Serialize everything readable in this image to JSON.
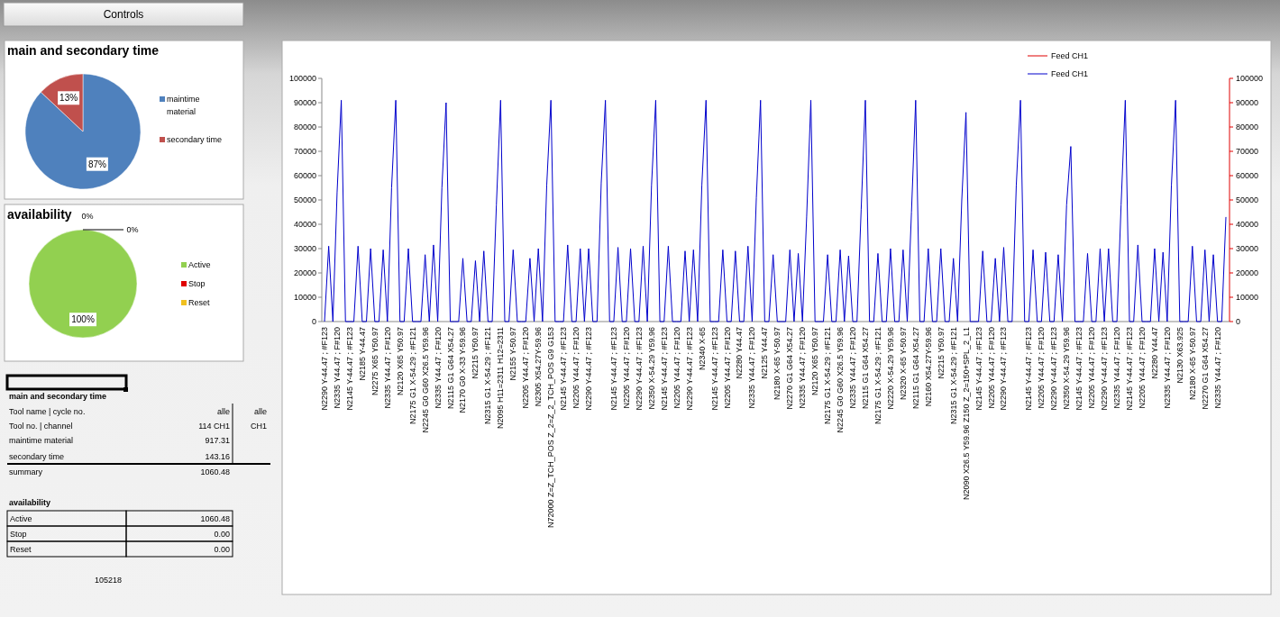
{
  "chart_data": [
    {
      "type": "other",
      "title": "Controls"
    },
    {
      "type": "pie",
      "title": "main and secondary time",
      "categories": [
        "maintime material",
        "secondary time"
      ],
      "values": [
        87,
        13
      ],
      "colors": [
        "#4f81bd",
        "#c0504d"
      ],
      "value_labels": [
        "87%",
        "13%"
      ],
      "legend": "right"
    },
    {
      "type": "pie",
      "title": "availability",
      "categories": [
        "Active",
        "Stop",
        "Reset"
      ],
      "values": [
        100,
        0,
        0
      ],
      "colors": [
        "#92d050",
        "#e00000",
        "#f0c020"
      ],
      "value_labels": [
        "100%",
        "0%",
        "0%"
      ],
      "legend": "right"
    },
    {
      "type": "other",
      "title": "main and secondary time",
      "categories": [
        "Tool name | cycle no.",
        "Tool no.  | channel",
        "maintime material",
        "secondary time",
        "summary"
      ],
      "value_labels": [
        "alle",
        "114 CH1",
        "917.31",
        "143.16",
        "1060.48"
      ],
      "annotations": [
        "alle",
        "CH1"
      ]
    },
    {
      "type": "other",
      "title": "availability",
      "categories": [
        "Active",
        "Stop",
        "Reset"
      ],
      "value_labels": [
        "1060.48",
        "0.00",
        "0.00"
      ],
      "annotations": [
        "105218"
      ]
    },
    {
      "type": "line",
      "legend": "top right",
      "categories": [
        "N2290 Y-44.47 ; #F123",
        null,
        null,
        "N2335 Y44.47 ; F#120",
        null,
        null,
        "N2145 Y-44.47 ; #F123",
        null,
        null,
        "N2185 Y-44.47",
        null,
        null,
        "N2275 X65 Y50.97",
        null,
        null,
        "N2335 Y44.47 ; F#120",
        null,
        null,
        "N2120 X65 Y50.97",
        null,
        null,
        "N2175 G1 X-54.29 ; #F121",
        null,
        null,
        "N2245 G0 G60 X26.5 Y59.96",
        null,
        null,
        "N2335 Y44.47 ; F#120",
        null,
        null,
        "N2115 G1 G64 X54.27",
        null,
        null,
        "N2170 G0 X-33 Y-59.96",
        null,
        null,
        "N2215 Y50.97",
        null,
        null,
        "N2315 G1 X-54.29 ; #F121",
        null,
        null,
        "N2095 H11=2311 H12=2311",
        null,
        null,
        "N2155 Y-50.97",
        null,
        null,
        "N2205 Y44.47 ; F#120",
        null,
        null,
        "N2305 X54.27Y-59.96",
        null,
        null,
        "N72000  Z=Z_TCH_POS Z_2=Z_2_TCH_POS G9 G153",
        null,
        null,
        "N2145 Y-44.47 ; #F123",
        null,
        null,
        "N2205 Y44.47 ; F#120",
        null,
        null,
        "N2290 Y-44.47 ; #F123",
        null,
        null,
        null,
        null,
        null,
        "N2145 Y-44.47 ; #F123",
        null,
        null,
        "N2205 Y44.47 ; F#120",
        null,
        null,
        "N2290 Y-44.47 ; #F123",
        null,
        null,
        "N2350 X-54.29 Y59.96",
        null,
        null,
        "N2145 Y-44.47 ; #F123",
        null,
        null,
        "N2205 Y44.47 ; F#120",
        null,
        null,
        "N2290 Y-44.47 ; #F123",
        null,
        null,
        "N2340 X-65",
        null,
        null,
        "N2145 Y-44.47 ; #F123",
        null,
        null,
        "N2205 Y44.47 ; F#120",
        null,
        null,
        "N2280 Y44.47",
        null,
        null,
        "N2335 Y44.47 ; F#120",
        null,
        null,
        "N2125 Y44.47",
        null,
        null,
        "N2180 X-65 Y-50.97",
        null,
        null,
        "N2270 G1 G64 X54.27",
        null,
        null,
        "N2335 Y44.47 ; F#120",
        null,
        null,
        "N2120 X65 Y50.97",
        null,
        null,
        "N2175 G1 X-54.29 ; #F121",
        null,
        null,
        "N2245 G0 G60 X26.5 Y59.96",
        null,
        null,
        "N2335 Y44.47 ; F#120",
        null,
        null,
        "N2115 G1 G64 X54.27",
        null,
        null,
        "N2175 G1 X-54.29 ; #F121",
        null,
        null,
        "N2220 X-54.29 Y59.96",
        null,
        null,
        "N2320 X-65 Y-50.97",
        null,
        null,
        "N2115 G1 G64 X54.27",
        null,
        null,
        "N2160 X54.27Y-59.96",
        null,
        null,
        "N2215 Y50.97",
        null,
        null,
        "N2315 G1 X-54.29 ; #F121",
        null,
        null,
        "N2090 X26.5 Y59.96 Z150 Z_2=150+SPL_2_L1",
        null,
        null,
        "N2145 Y-44.47 ; #F123",
        null,
        null,
        "N2205 Y44.47 ; F#120",
        null,
        null,
        "N2290 Y-44.47 ; #F123",
        null,
        null,
        null,
        null,
        null,
        "N2145 Y-44.47 ; #F123",
        null,
        null,
        "N2205 Y44.47 ; F#120",
        null,
        null,
        "N2290 Y-44.47 ; #F123",
        null,
        null,
        "N2350 X-54.29 Y59.96",
        null,
        null,
        "N2145 Y-44.47 ; #F123",
        null,
        null,
        "N2205 Y44.47 ; F#120",
        null,
        null,
        "N2290 Y-44.47 ; #F123",
        null,
        null,
        "N2335 Y44.47 ; F#120",
        null,
        null,
        "N2145 Y-44.47 ; #F123",
        null,
        null,
        "N2205 Y44.47 ; F#120",
        null,
        null,
        "N2280 Y44.47",
        null,
        null,
        "N2335 Y44.47 ; F#120",
        null,
        null,
        "N2130 X63.925",
        null,
        null,
        "N2180 X-65 Y-50.97",
        null,
        null,
        "N2270 G1 G64 X54.27",
        null,
        null,
        "N2335 Y44.47 ; F#120",
        null,
        null
      ],
      "series": [
        {
          "name": "Feed CH1",
          "color": "#e00000",
          "values": [
            null,
            null,
            null,
            null,
            null,
            null,
            null,
            null,
            null,
            null,
            null,
            null,
            null,
            null,
            null,
            null,
            null,
            null,
            null,
            null,
            null,
            null,
            null,
            null,
            null,
            null,
            null,
            null,
            null,
            null,
            null,
            null,
            null,
            null,
            null,
            null,
            null,
            null,
            null,
            null,
            null,
            null,
            null,
            null,
            null,
            null,
            null,
            null,
            null,
            null,
            null,
            null,
            null,
            null,
            null,
            null,
            null,
            null,
            null,
            null,
            null,
            null,
            null,
            null,
            null,
            null,
            null,
            null,
            null,
            null,
            null,
            null,
            null,
            null,
            null,
            null,
            null,
            null,
            null,
            null,
            null,
            null,
            null,
            null,
            null,
            null,
            null,
            null,
            null,
            null,
            null,
            null,
            null,
            null,
            null,
            null,
            null,
            null,
            null,
            null,
            null,
            null,
            null,
            null,
            null,
            null,
            null,
            null,
            null,
            null,
            null,
            null,
            null,
            null,
            null,
            null,
            null,
            null,
            null,
            null,
            null,
            null,
            null,
            null,
            null,
            null,
            null,
            null,
            null,
            null,
            null,
            null,
            null,
            null,
            null,
            null,
            null,
            null,
            null,
            null,
            null,
            null,
            null,
            null,
            null,
            null,
            null,
            null,
            null,
            null,
            null,
            null,
            null,
            null,
            null,
            null,
            null,
            null,
            null,
            null,
            null,
            null,
            null,
            null,
            null,
            null,
            null,
            null,
            null,
            null,
            null,
            null,
            null,
            null,
            null,
            null,
            null,
            null,
            null,
            null,
            null,
            null,
            null,
            null,
            null,
            null,
            null,
            null,
            null,
            null,
            null,
            null,
            null,
            null,
            null,
            null,
            null,
            null,
            null,
            null,
            null,
            null,
            null,
            null,
            null,
            null,
            null,
            null,
            null,
            null,
            null,
            null,
            null,
            null,
            null,
            null
          ]
        },
        {
          "name": "Feed CH1",
          "color": "#0000cc",
          "values": [
            0,
            31000,
            0,
            53000,
            91000,
            0,
            0,
            0,
            31000,
            0,
            0,
            30000,
            0,
            0,
            29500,
            0,
            55000,
            91000,
            0,
            0,
            30000,
            0,
            0,
            0,
            27500,
            0,
            31500,
            0,
            55000,
            90000,
            0,
            0,
            0,
            26000,
            0,
            0,
            25000,
            0,
            29000,
            0,
            0,
            48000,
            91000,
            0,
            0,
            29500,
            0,
            0,
            0,
            26000,
            0,
            30000,
            0,
            56000,
            91000,
            0,
            0,
            0,
            31500,
            0,
            0,
            30000,
            0,
            30000,
            0,
            0,
            57000,
            91000,
            0,
            0,
            30500,
            0,
            0,
            30000,
            0,
            0,
            31000,
            0,
            56000,
            91000,
            0,
            0,
            31000,
            0,
            0,
            0,
            29000,
            0,
            29500,
            0,
            56000,
            91000,
            0,
            0,
            0,
            29500,
            0,
            0,
            29000,
            0,
            0,
            31000,
            0,
            51000,
            91000,
            0,
            0,
            27500,
            0,
            0,
            0,
            29500,
            0,
            28000,
            0,
            43000,
            91000,
            0,
            0,
            0,
            27500,
            0,
            0,
            29500,
            0,
            27000,
            0,
            0,
            46000,
            91000,
            0,
            0,
            28000,
            0,
            0,
            30000,
            0,
            0,
            29500,
            0,
            45000,
            91000,
            0,
            0,
            30000,
            0,
            0,
            30000,
            0,
            0,
            26000,
            0,
            50000,
            86000,
            0,
            0,
            0,
            29000,
            0,
            0,
            26000,
            0,
            30500,
            0,
            0,
            56000,
            91000,
            0,
            0,
            29500,
            0,
            0,
            28500,
            0,
            0,
            27500,
            0,
            48000,
            72000,
            0,
            0,
            0,
            28000,
            0,
            0,
            30000,
            0,
            30000,
            0,
            0,
            48000,
            91000,
            0,
            0,
            31500,
            0,
            0,
            0,
            30000,
            0,
            28500,
            0,
            56000,
            91000,
            0,
            0,
            0,
            31000,
            0,
            0,
            29500,
            0,
            27500,
            0,
            0,
            43000
          ]
        }
      ],
      "ylim": [
        0,
        100000
      ],
      "yticks": [
        0,
        10000,
        20000,
        30000,
        40000,
        50000,
        60000,
        70000,
        80000,
        90000,
        100000
      ],
      "y2lim": [
        0,
        100000
      ],
      "y2ticks": [
        0,
        10000,
        20000,
        30000,
        40000,
        50000,
        60000,
        70000,
        80000,
        90000,
        100000
      ]
    }
  ]
}
